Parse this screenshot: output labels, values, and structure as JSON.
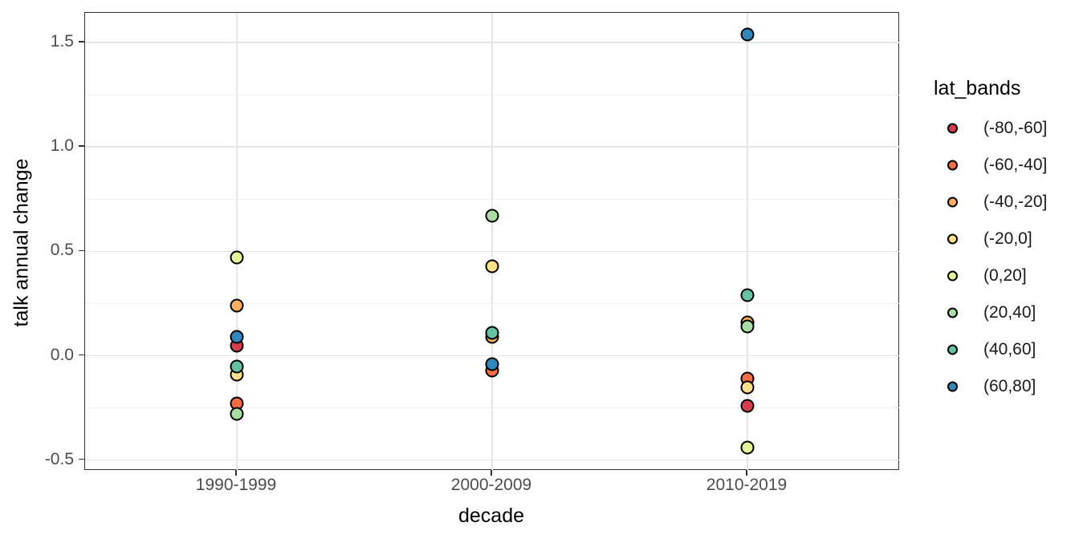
{
  "y_axis": {
    "title": "talk annual change",
    "ticks": [
      {
        "label": "1.5",
        "value": 1.5
      },
      {
        "label": "1.0",
        "value": 1.0
      },
      {
        "label": "0.5",
        "value": 0.5
      },
      {
        "label": "0.0",
        "value": 0.0
      },
      {
        "label": "-0.5",
        "value": -0.5
      }
    ],
    "minor_gridline_values": [
      1.25,
      0.75,
      0.25,
      -0.25
    ]
  },
  "x_axis": {
    "title": "decade",
    "categories": [
      "1990-1999",
      "2000-2009",
      "2010-2019"
    ]
  },
  "legend": {
    "title": "lat_bands",
    "items": [
      {
        "label": "(-80,-60]",
        "color": "#d53e4f"
      },
      {
        "label": "(-60,-40]",
        "color": "#f46d43"
      },
      {
        "label": "(-40,-20]",
        "color": "#fdae61"
      },
      {
        "label": "(-20,0]",
        "color": "#fee08b"
      },
      {
        "label": "(0,20]",
        "color": "#e6f598"
      },
      {
        "label": "(20,40]",
        "color": "#abdda4"
      },
      {
        "label": "(40,60]",
        "color": "#66c2a5"
      },
      {
        "label": "(60,80]",
        "color": "#3288bd"
      }
    ]
  },
  "chart_data": {
    "type": "scatter",
    "title": "",
    "xlabel": "decade",
    "ylabel": "talk annual change",
    "x_categories": [
      "1990-1999",
      "2000-2009",
      "2010-2019"
    ],
    "ylim": [
      -0.55,
      1.64
    ],
    "y_ticks": [
      1.5,
      1.0,
      0.5,
      0.0,
      -0.5
    ],
    "grid": true,
    "legend_title": "lat_bands",
    "legend_position": "right",
    "point_style": "filled-circle-black-outline",
    "series": [
      {
        "name": "(-80,-60]",
        "color": "#d53e4f",
        "points": [
          [
            "1990-1999",
            0.05
          ],
          [
            "2010-2019",
            -0.24
          ]
        ]
      },
      {
        "name": "(-60,-40]",
        "color": "#f46d43",
        "points": [
          [
            "1990-1999",
            -0.23
          ],
          [
            "2000-2009",
            -0.07
          ],
          [
            "2010-2019",
            -0.11
          ]
        ]
      },
      {
        "name": "(-40,-20]",
        "color": "#fdae61",
        "points": [
          [
            "1990-1999",
            0.24
          ],
          [
            "2000-2009",
            0.09
          ],
          [
            "2010-2019",
            0.16
          ]
        ]
      },
      {
        "name": "(-20,0]",
        "color": "#fee08b",
        "points": [
          [
            "1990-1999",
            -0.09
          ],
          [
            "2000-2009",
            0.43
          ],
          [
            "2010-2019",
            -0.15
          ]
        ]
      },
      {
        "name": "(0,20]",
        "color": "#e6f598",
        "points": [
          [
            "1990-1999",
            0.47
          ],
          [
            "2010-2019",
            -0.44
          ]
        ]
      },
      {
        "name": "(20,40]",
        "color": "#abdda4",
        "points": [
          [
            "1990-1999",
            -0.28
          ],
          [
            "2000-2009",
            0.67
          ],
          [
            "2010-2019",
            0.14
          ]
        ]
      },
      {
        "name": "(40,60]",
        "color": "#66c2a5",
        "points": [
          [
            "1990-1999",
            -0.05
          ],
          [
            "2000-2009",
            0.11
          ],
          [
            "2010-2019",
            0.29
          ]
        ]
      },
      {
        "name": "(60,80]",
        "color": "#3288bd",
        "points": [
          [
            "1990-1999",
            0.09
          ],
          [
            "2000-2009",
            -0.04
          ],
          [
            "2010-2019",
            1.54
          ]
        ]
      }
    ]
  },
  "style": {
    "background": "#ffffff",
    "panel_border": "#333333",
    "grid_major": "#e6e6e6",
    "grid_minor": "#f0f0f0",
    "tick_label_color": "#4d4d4d",
    "axis_title_color": "#000000",
    "point_outline": "#000000"
  }
}
